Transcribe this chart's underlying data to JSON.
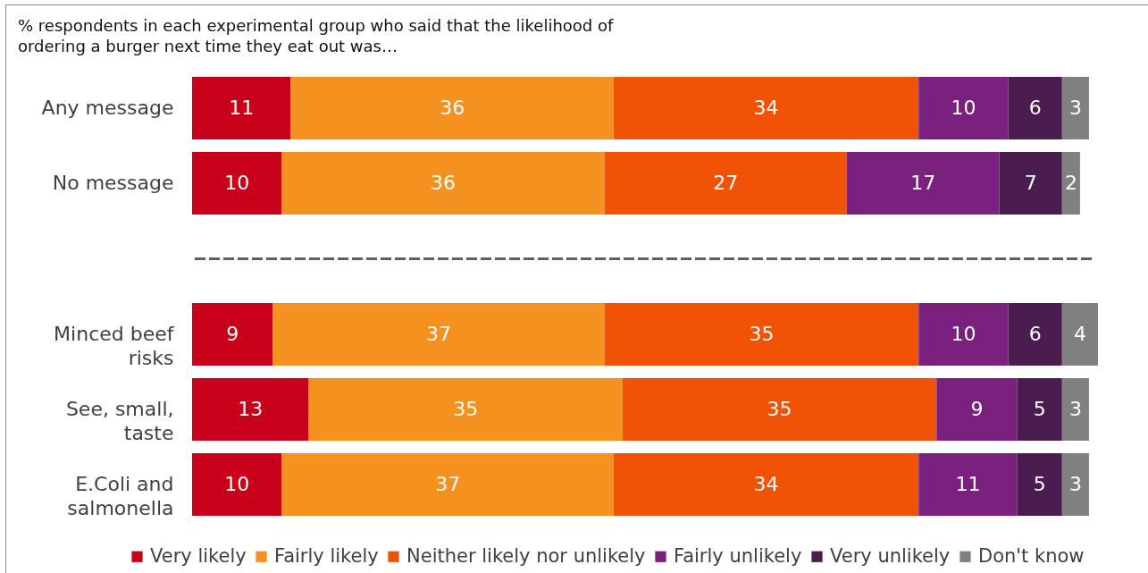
{
  "chart_data": [
    {
      "type": "bar",
      "orientation": "horizontal",
      "stacked": true,
      "data_labels": true,
      "tick_labels": "y",
      "subtitle": "% respondents in each experimental group who said that the likelihood of ordering a burger next time they eat out was…",
      "categories": [
        "Any message",
        "No message"
      ],
      "series": [
        {
          "color": "#c80019",
          "values": [
            11,
            10
          ]
        },
        {
          "color": "#f5911e",
          "values": [
            36,
            36
          ]
        },
        {
          "color": "#f05206",
          "values": [
            34,
            27
          ]
        },
        {
          "color": "#7a2180",
          "values": [
            10,
            17
          ]
        },
        {
          "color": "#4b1c50",
          "values": [
            6,
            7
          ]
        },
        {
          "color": "#808080",
          "values": [
            3,
            2
          ]
        }
      ]
    },
    {
      "type": "bar",
      "orientation": "horizontal",
      "stacked": true,
      "data_labels": true,
      "tick_labels": "y",
      "legend": "bottom",
      "categories": [
        "Minced beef risks",
        "See, small, taste",
        "E.Coli and salmonella"
      ],
      "series": [
        {
          "name": "Very likely",
          "color": "#c80019",
          "values": [
            9,
            13,
            10
          ]
        },
        {
          "name": "Fairly likely",
          "color": "#f5911e",
          "values": [
            37,
            35,
            37
          ]
        },
        {
          "name": "Neither likely nor unlikely",
          "color": "#f05206",
          "values": [
            35,
            35,
            34
          ]
        },
        {
          "name": "Fairly unlikely",
          "color": "#7a2180",
          "values": [
            10,
            9,
            11
          ]
        },
        {
          "name": "Very unlikely",
          "color": "#4b1c50",
          "values": [
            6,
            5,
            5
          ]
        },
        {
          "name": "Don't know",
          "color": "#808080",
          "values": [
            4,
            3,
            3
          ]
        }
      ]
    }
  ]
}
